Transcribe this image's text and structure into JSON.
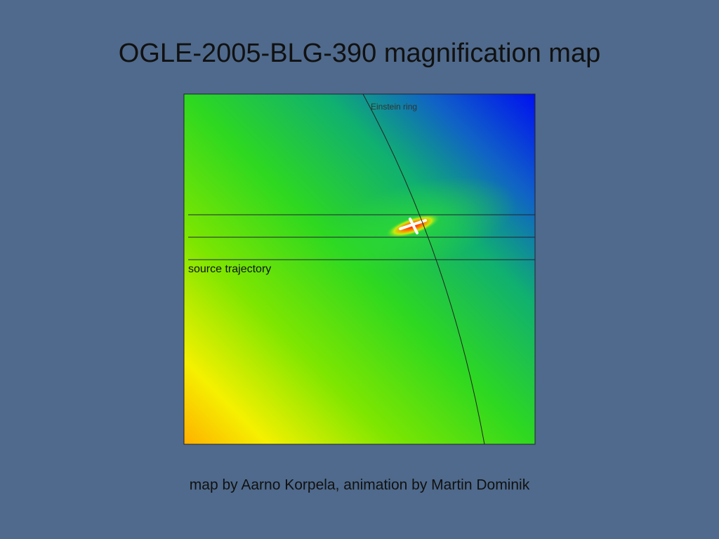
{
  "title": "OGLE-2005-BLG-390 magnification map",
  "map": {
    "ring_label": "Einstein ring",
    "trajectory_label": "source trajectory"
  },
  "caption": "map by Aarno Korpela, animation by Martin Dominik"
}
